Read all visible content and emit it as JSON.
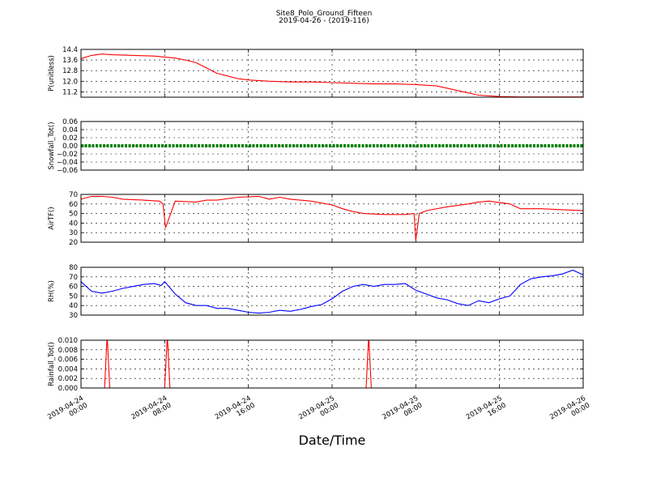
{
  "title": "Site8_Polo_Ground_Fifteen",
  "subtitle": "2019-04-26 - (2019-116)",
  "xlabel": "Date/Time",
  "chart_data": {
    "type": "line",
    "grid": true,
    "x_range": [
      "2019-04-24 00:00",
      "2019-04-26 00:00"
    ],
    "x_ticks": [
      {
        "line1": "2019-04-24",
        "line2": "00:00",
        "t": "2019-04-24 00:00"
      },
      {
        "line1": "2019-04-24",
        "line2": "08:00",
        "t": "2019-04-24 08:00"
      },
      {
        "line1": "2019-04-24",
        "line2": "16:00",
        "t": "2019-04-24 16:00"
      },
      {
        "line1": "2019-04-25",
        "line2": "00:00",
        "t": "2019-04-25 00:00"
      },
      {
        "line1": "2019-04-25",
        "line2": "08:00",
        "t": "2019-04-25 08:00"
      },
      {
        "line1": "2019-04-25",
        "line2": "16:00",
        "t": "2019-04-25 16:00"
      },
      {
        "line1": "2019-04-26",
        "line2": "00:00",
        "t": "2019-04-26 00:00"
      }
    ],
    "panels": [
      {
        "ylabel": "P(unitless)",
        "color": "#ff0000",
        "ylim": [
          10.8,
          14.4
        ],
        "yticks": [
          11.2,
          12.0,
          12.8,
          13.6,
          14.4
        ],
        "ytick_labels": [
          "11.2",
          "12.0",
          "12.8",
          "13.6",
          "14.4"
        ],
        "x": [
          "2019-04-24 00:00",
          "2019-04-24 01:00",
          "2019-04-24 02:00",
          "2019-04-24 03:00",
          "2019-04-24 05:00",
          "2019-04-24 07:00",
          "2019-04-24 09:00",
          "2019-04-24 10:00",
          "2019-04-24 11:00",
          "2019-04-24 12:00",
          "2019-04-24 13:00",
          "2019-04-24 14:00",
          "2019-04-24 15:00",
          "2019-04-24 16:00",
          "2019-04-24 18:00",
          "2019-04-24 20:00",
          "2019-04-24 22:00",
          "2019-04-25 00:00",
          "2019-04-25 02:00",
          "2019-04-25 04:00",
          "2019-04-25 06:00",
          "2019-04-25 08:00",
          "2019-04-25 10:00",
          "2019-04-25 12:00",
          "2019-04-25 14:00",
          "2019-04-25 16:00",
          "2019-04-25 18:00",
          "2019-04-25 20:00",
          "2019-04-25 22:00",
          "2019-04-26 00:00"
        ],
        "y": [
          13.7,
          13.95,
          14.05,
          14.0,
          13.95,
          13.9,
          13.75,
          13.6,
          13.4,
          13.0,
          12.6,
          12.4,
          12.2,
          12.1,
          12.0,
          11.95,
          11.95,
          11.9,
          11.85,
          11.8,
          11.8,
          11.75,
          11.65,
          11.3,
          10.95,
          10.85,
          10.82,
          10.82,
          10.82,
          10.82
        ]
      },
      {
        "ylabel": "Snowfall_Tot()",
        "color": "#008000",
        "ylim": [
          -0.06,
          0.06
        ],
        "yticks": [
          -0.06,
          -0.04,
          -0.02,
          0.0,
          0.02,
          0.04,
          0.06
        ],
        "ytick_labels": [
          "−0.06",
          "−0.04",
          "−0.02",
          "0.00",
          "0.02",
          "0.04",
          "0.06"
        ],
        "constant_value": 0.0,
        "marker": "dot"
      },
      {
        "ylabel": "AirTF()",
        "color": "#ff0000",
        "ylim": [
          20,
          70
        ],
        "yticks": [
          20,
          30,
          40,
          50,
          60,
          70
        ],
        "ytick_labels": [
          "20",
          "30",
          "40",
          "50",
          "60",
          "70"
        ],
        "x": [
          "2019-04-24 00:00",
          "2019-04-24 01:00",
          "2019-04-24 02:00",
          "2019-04-24 03:00",
          "2019-04-24 04:00",
          "2019-04-24 06:00",
          "2019-04-24 07:30",
          "2019-04-24 07:50",
          "2019-04-24 08:05",
          "2019-04-24 09:00",
          "2019-04-24 11:00",
          "2019-04-24 12:00",
          "2019-04-24 13:00",
          "2019-04-24 15:00",
          "2019-04-24 17:00",
          "2019-04-24 18:00",
          "2019-04-24 19:00",
          "2019-04-24 20:00",
          "2019-04-24 22:00",
          "2019-04-25 00:00",
          "2019-04-25 01:00",
          "2019-04-25 02:00",
          "2019-04-25 03:00",
          "2019-04-25 05:00",
          "2019-04-25 07:00",
          "2019-04-25 07:50",
          "2019-04-25 08:00",
          "2019-04-25 08:20",
          "2019-04-25 09:00",
          "2019-04-25 11:00",
          "2019-04-25 13:00",
          "2019-04-25 14:00",
          "2019-04-25 15:00",
          "2019-04-25 17:00",
          "2019-04-25 18:00",
          "2019-04-25 20:00",
          "2019-04-25 22:00",
          "2019-04-26 00:00"
        ],
        "y": [
          65,
          68,
          68,
          67,
          65,
          64,
          63,
          60,
          35,
          63,
          62,
          64,
          64,
          67,
          68,
          65,
          67,
          65,
          63,
          59,
          55,
          52,
          50,
          49,
          49,
          50,
          22,
          50,
          53,
          57,
          60,
          62,
          63,
          60,
          55,
          55,
          54,
          53
        ]
      },
      {
        "ylabel": "RH(%)",
        "color": "#0000ff",
        "ylim": [
          30,
          80
        ],
        "yticks": [
          30,
          40,
          50,
          60,
          70,
          80
        ],
        "ytick_labels": [
          "30",
          "40",
          "50",
          "60",
          "70",
          "80"
        ],
        "x": [
          "2019-04-24 00:00",
          "2019-04-24 01:00",
          "2019-04-24 02:00",
          "2019-04-24 03:00",
          "2019-04-24 04:00",
          "2019-04-24 05:00",
          "2019-04-24 06:00",
          "2019-04-24 07:00",
          "2019-04-24 07:40",
          "2019-04-24 08:00",
          "2019-04-24 09:00",
          "2019-04-24 10:00",
          "2019-04-24 11:00",
          "2019-04-24 12:00",
          "2019-04-24 13:00",
          "2019-04-24 14:00",
          "2019-04-24 15:00",
          "2019-04-24 16:00",
          "2019-04-24 17:00",
          "2019-04-24 18:00",
          "2019-04-24 19:00",
          "2019-04-24 20:00",
          "2019-04-24 21:00",
          "2019-04-24 22:00",
          "2019-04-24 23:00",
          "2019-04-25 00:00",
          "2019-04-25 01:00",
          "2019-04-25 02:00",
          "2019-04-25 03:00",
          "2019-04-25 04:00",
          "2019-04-25 05:00",
          "2019-04-25 06:00",
          "2019-04-25 07:00",
          "2019-04-25 08:00",
          "2019-04-25 09:00",
          "2019-04-25 10:00",
          "2019-04-25 11:00",
          "2019-04-25 12:00",
          "2019-04-25 13:00",
          "2019-04-25 14:00",
          "2019-04-25 15:00",
          "2019-04-25 16:00",
          "2019-04-25 17:00",
          "2019-04-25 18:00",
          "2019-04-25 19:00",
          "2019-04-25 20:00",
          "2019-04-25 21:00",
          "2019-04-25 22:00",
          "2019-04-25 23:00",
          "2019-04-26 00:00"
        ],
        "y": [
          65,
          55,
          53,
          55,
          58,
          60,
          62,
          63,
          61,
          65,
          52,
          43,
          40,
          40,
          37,
          37,
          35,
          33,
          32,
          33,
          35,
          34,
          36,
          39,
          41,
          47,
          55,
          60,
          62,
          60,
          62,
          62,
          63,
          56,
          52,
          48,
          46,
          42,
          40,
          45,
          43,
          47,
          50,
          62,
          68,
          70,
          71,
          73,
          77,
          72
        ]
      },
      {
        "ylabel": "Rainfall_Tot()",
        "color": "#ff0000",
        "ylim": [
          0.0,
          0.01
        ],
        "yticks": [
          0.0,
          0.002,
          0.004,
          0.006,
          0.008,
          0.01
        ],
        "ytick_labels": [
          "0.000",
          "0.002",
          "0.004",
          "0.006",
          "0.008",
          "0.010"
        ],
        "x": [
          "2019-04-24 00:00",
          "2019-04-24 02:15",
          "2019-04-24 02:30",
          "2019-04-24 02:45",
          "2019-04-24 08:00",
          "2019-04-24 08:15",
          "2019-04-24 08:30",
          "2019-04-25 03:15",
          "2019-04-25 03:30",
          "2019-04-25 03:45",
          "2019-04-26 00:00"
        ],
        "y": [
          0,
          0,
          0.011,
          0,
          0,
          0.011,
          0,
          0,
          0.011,
          0,
          0
        ]
      }
    ]
  }
}
